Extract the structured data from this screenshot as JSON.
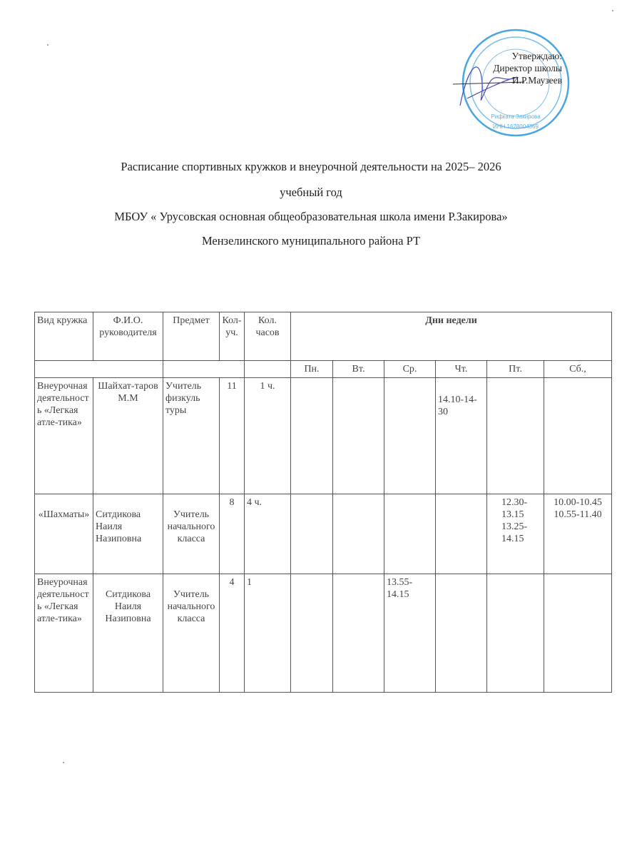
{
  "approval": {
    "line1": "Утверждаю:",
    "line2": "Директор школы",
    "line3": "И.Р.Маузеев"
  },
  "stamp": {
    "color": "#3a9ad9",
    "text": "Рифката Закирова",
    "inn": "ИНН 1628004369"
  },
  "title": {
    "line1": "Расписание спортивных  кружков   и внеурочной деятельности на  2025– 2026",
    "line2": "учебный  год",
    "line3": "МБОУ « Урусовская основная  общеобразовательная  школа имени Р.Закирова»",
    "line4": "Мензелинского  муниципального  района  РТ"
  },
  "table": {
    "headers": {
      "type": "Вид кружка",
      "leader": "Ф.И.О. руководителя",
      "subject": "Предмет",
      "students": "Кол-уч.",
      "hours": "Кол. часов",
      "days_group": "Дни   недели"
    },
    "days": [
      "Пн.",
      "Вт.",
      "Ср.",
      "Чт.",
      "Пт.",
      "Сб.,"
    ],
    "rows": [
      {
        "type": "Внеурочная деятельность «Легкая атле-тика»",
        "leader": "Шайхат-таров М.М",
        "subject": "Учитель физкуль туры",
        "students": "11",
        "hours": "1 ч.",
        "days": [
          "",
          "",
          "",
          "14.10-14-30",
          "",
          ""
        ]
      },
      {
        "type": "«Шахматы»",
        "leader": "Ситдикова Наиля Назиповна",
        "subject": "Учитель начального класса",
        "students": "8",
        "hours": "4 ч.",
        "days": [
          "",
          "",
          "",
          "",
          "12.30-13.15 13.25-14.15",
          "10.00-10.45 10.55-11.40"
        ]
      },
      {
        "type": "Внеурочная деятельность «Легкая атле-тика»",
        "leader": "Ситдикова Наиля Назиповна",
        "subject": "Учитель начального класса",
        "students": "4",
        "hours": "1",
        "days": [
          "",
          "",
          "13.55-14.15",
          "",
          "",
          ""
        ]
      }
    ]
  }
}
